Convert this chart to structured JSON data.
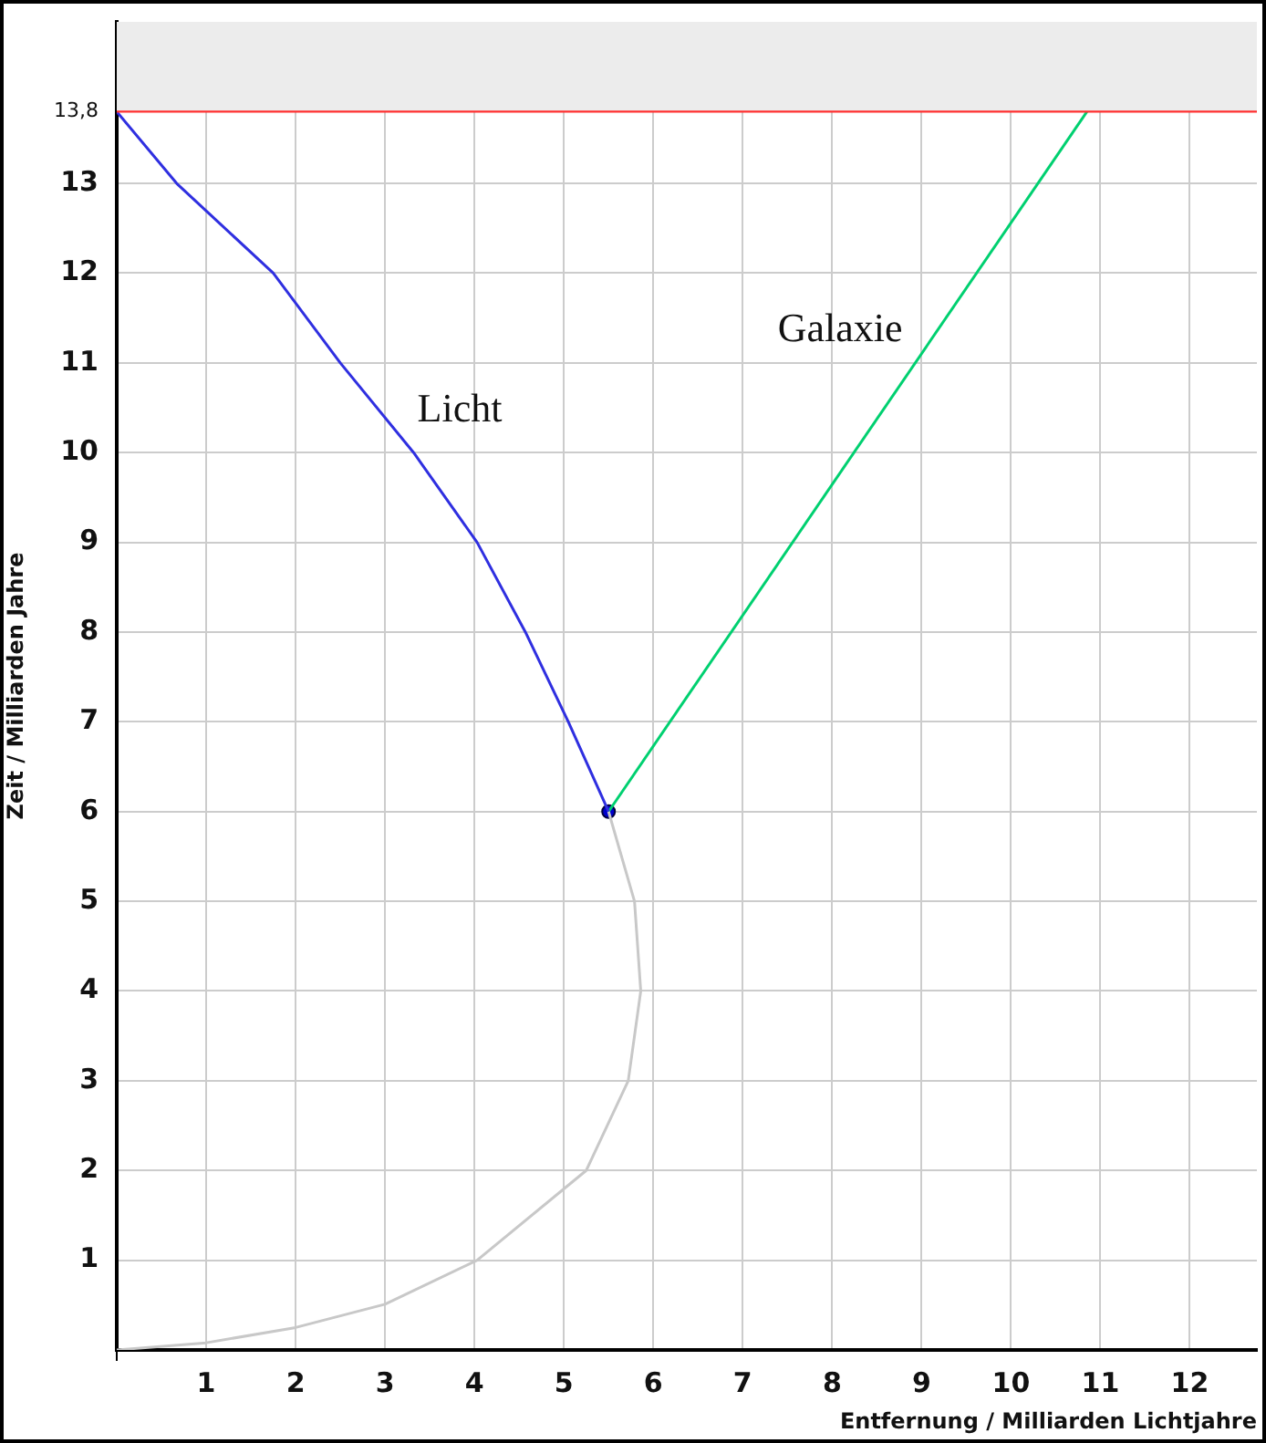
{
  "chart_data": {
    "type": "line",
    "xlabel": "Entfernung / Milliarden Lichtjahre",
    "ylabel": "Zeit / Milliarden Jahre",
    "xlim": [
      0,
      12.75
    ],
    "ylim": [
      0,
      14.8
    ],
    "xticks": [
      {
        "value": 0,
        "label": null
      },
      1,
      2,
      3,
      4,
      5,
      6,
      7,
      8,
      9,
      10,
      11,
      12
    ],
    "yticks": [
      {
        "value": 0,
        "label": null
      },
      1,
      2,
      3,
      4,
      5,
      6,
      7,
      8,
      9,
      10,
      11,
      12,
      13,
      {
        "value": 13.8,
        "label": "13,8"
      }
    ],
    "grid": true,
    "legend": false,
    "series": [
      {
        "name": "Licht",
        "color": "#2f2fe0",
        "x": [
          0,
          0.67,
          1.75,
          2.5,
          3.32,
          4.03,
          4.57,
          5.05,
          5.5
        ],
        "values": [
          13.8,
          13,
          12,
          11,
          10,
          9,
          8,
          7,
          6
        ]
      },
      {
        "color": "#c8c8c8",
        "x": [
          5.5,
          5.79,
          5.86,
          5.72,
          5.25,
          4.03,
          3,
          2,
          1,
          0
        ],
        "values": [
          6,
          5,
          4,
          3,
          2,
          1,
          0.51,
          0.25,
          0.08,
          0
        ]
      },
      {
        "name": "Galaxie",
        "color": "#00d070",
        "x": [
          5.5,
          10.85
        ],
        "values": [
          6,
          13.8
        ]
      },
      {
        "type": "scatter",
        "color": "#0000cc",
        "x": [
          5.5
        ],
        "values": [
          6
        ]
      }
    ],
    "ref_lines": [
      {
        "axis": "y",
        "value": 13.8,
        "color": "#ff3030"
      }
    ],
    "bands": [
      {
        "axis": "y",
        "from": 13.8,
        "to": 14.8,
        "color": "#ececec"
      }
    ]
  }
}
